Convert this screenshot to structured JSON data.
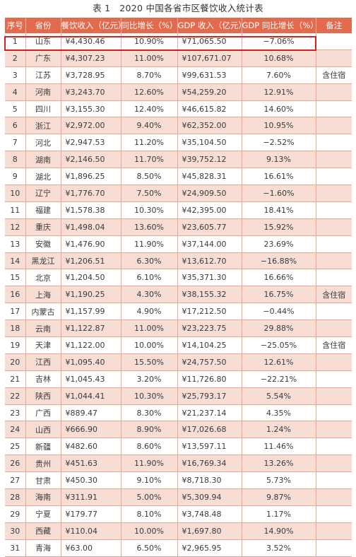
{
  "title": "表 1　2020 中国各省市区餐饮收入统计表",
  "headers": [
    "序号",
    "省份",
    "餐饮收入（亿元）",
    "同比增长（%）",
    "GDP 收入（亿元）",
    "GDP 同比增长（%）",
    "备注"
  ],
  "rows": [
    {
      "no": "1",
      "prov": "山东",
      "rev": "¥4,430.46",
      "yoy": "10.90%",
      "gdp": "¥71,065.50",
      "gdp_yoy": "−7.06%",
      "note": ""
    },
    {
      "no": "2",
      "prov": "广东",
      "rev": "¥4,307.23",
      "yoy": "11.00%",
      "gdp": "¥107,671.07",
      "gdp_yoy": "10.68%",
      "note": ""
    },
    {
      "no": "3",
      "prov": "江苏",
      "rev": "¥3,728.95",
      "yoy": "8.70%",
      "gdp": "¥99,631.53",
      "gdp_yoy": "7.60%",
      "note": "含住宿"
    },
    {
      "no": "4",
      "prov": "河南",
      "rev": "¥3,243.70",
      "yoy": "12.60%",
      "gdp": "¥54,259.20",
      "gdp_yoy": "12.91%",
      "note": ""
    },
    {
      "no": "5",
      "prov": "四川",
      "rev": "¥3,155.30",
      "yoy": "12.40%",
      "gdp": "¥46,615.82",
      "gdp_yoy": "14.60%",
      "note": ""
    },
    {
      "no": "6",
      "prov": "浙江",
      "rev": "¥2,972.00",
      "yoy": "9.40%",
      "gdp": "¥62,352.00",
      "gdp_yoy": "10.95%",
      "note": ""
    },
    {
      "no": "7",
      "prov": "河北",
      "rev": "¥2,947.53",
      "yoy": "11.20%",
      "gdp": "¥35,104.50",
      "gdp_yoy": "−2.52%",
      "note": ""
    },
    {
      "no": "8",
      "prov": "湖南",
      "rev": "¥2,146.50",
      "yoy": "11.70%",
      "gdp": "¥39,752.12",
      "gdp_yoy": "9.13%",
      "note": ""
    },
    {
      "no": "9",
      "prov": "湖北",
      "rev": "¥1,896.25",
      "yoy": "8.50%",
      "gdp": "¥45,828.31",
      "gdp_yoy": "16.61%",
      "note": ""
    },
    {
      "no": "10",
      "prov": "辽宁",
      "rev": "¥1,776.70",
      "yoy": "7.50%",
      "gdp": "¥24,909.50",
      "gdp_yoy": "−1.60%",
      "note": ""
    },
    {
      "no": "11",
      "prov": "福建",
      "rev": "¥1,578.38",
      "yoy": "10.30%",
      "gdp": "¥42,395.00",
      "gdp_yoy": "18.41%",
      "note": ""
    },
    {
      "no": "12",
      "prov": "重庆",
      "rev": "¥1,498.04",
      "yoy": "13.60%",
      "gdp": "¥23,605.77",
      "gdp_yoy": "15.92%",
      "note": ""
    },
    {
      "no": "13",
      "prov": "安徽",
      "rev": "¥1,476.90",
      "yoy": "11.90%",
      "gdp": "¥37,144.00",
      "gdp_yoy": "23.69%",
      "note": ""
    },
    {
      "no": "14",
      "prov": "黑龙江",
      "rev": "¥1,206.51",
      "yoy": "6.30%",
      "gdp": "¥13,612.70",
      "gdp_yoy": "−16.88%",
      "note": ""
    },
    {
      "no": "15",
      "prov": "北京",
      "rev": "¥1,204.50",
      "yoy": "6.10%",
      "gdp": "¥35,371.30",
      "gdp_yoy": "16.66%",
      "note": ""
    },
    {
      "no": "16",
      "prov": "上海",
      "rev": "¥1,190.25",
      "yoy": "4.30%",
      "gdp": "¥38,155.32",
      "gdp_yoy": "16.75%",
      "note": "含住宿"
    },
    {
      "no": "17",
      "prov": "内蒙古",
      "rev": "¥1,157.99",
      "yoy": "4.90%",
      "gdp": "¥17,212.50",
      "gdp_yoy": "−0.44%",
      "note": ""
    },
    {
      "no": "18",
      "prov": "云南",
      "rev": "¥1,122.87",
      "yoy": "11.00%",
      "gdp": "¥23,223.75",
      "gdp_yoy": "29.88%",
      "note": ""
    },
    {
      "no": "19",
      "prov": "天津",
      "rev": "¥1,122.00",
      "yoy": "10.00%",
      "gdp": "¥14,104.25",
      "gdp_yoy": "−25.05%",
      "note": "含住宿"
    },
    {
      "no": "20",
      "prov": "江西",
      "rev": "¥1,095.40",
      "yoy": "15.50%",
      "gdp": "¥24,757.50",
      "gdp_yoy": "12.61%",
      "note": ""
    },
    {
      "no": "21",
      "prov": "吉林",
      "rev": "¥1,045.43",
      "yoy": "3.20%",
      "gdp": "¥11,726.80",
      "gdp_yoy": "−22.21%",
      "note": ""
    },
    {
      "no": "22",
      "prov": "陕西",
      "rev": "¥1,044.41",
      "yoy": "10.30%",
      "gdp": "¥25,793.17",
      "gdp_yoy": "5.54%",
      "note": ""
    },
    {
      "no": "23",
      "prov": "广西",
      "rev": "¥889.47",
      "yoy": "8.30%",
      "gdp": "¥21,237.14",
      "gdp_yoy": "4.35%",
      "note": ""
    },
    {
      "no": "24",
      "prov": "山西",
      "rev": "¥666.90",
      "yoy": "8.90%",
      "gdp": "¥17,026.68",
      "gdp_yoy": "1.24%",
      "note": ""
    },
    {
      "no": "25",
      "prov": "新疆",
      "rev": "¥482.60",
      "yoy": "8.60%",
      "gdp": "¥13,597.11",
      "gdp_yoy": "11.46%",
      "note": ""
    },
    {
      "no": "26",
      "prov": "贵州",
      "rev": "¥451.63",
      "yoy": "11.90%",
      "gdp": "¥16,769.34",
      "gdp_yoy": "13.26%",
      "note": ""
    },
    {
      "no": "27",
      "prov": "甘肃",
      "rev": "¥450.30",
      "yoy": "9.10%",
      "gdp": "¥8,718.30",
      "gdp_yoy": "5.73%",
      "note": ""
    },
    {
      "no": "28",
      "prov": "海南",
      "rev": "¥311.91",
      "yoy": "5.00%",
      "gdp": "¥5,309.94",
      "gdp_yoy": "9.87%",
      "note": ""
    },
    {
      "no": "29",
      "prov": "宁夏",
      "rev": "¥179.77",
      "yoy": "8.10%",
      "gdp": "¥3,748.48",
      "gdp_yoy": "1.17%",
      "note": ""
    },
    {
      "no": "30",
      "prov": "西藏",
      "rev": "¥110.04",
      "yoy": "10.00%",
      "gdp": "¥1,697.80",
      "gdp_yoy": "14.90%",
      "note": ""
    },
    {
      "no": "31",
      "prov": "青海",
      "rev": "¥63.00",
      "yoy": "6.50%",
      "gdp": "¥2,965.95",
      "gdp_yoy": "3.52%",
      "note": ""
    }
  ],
  "colors": {
    "header_bg": "#e46a4e",
    "stripe": "#f7ddd3",
    "highlight": "#d61f1f"
  }
}
